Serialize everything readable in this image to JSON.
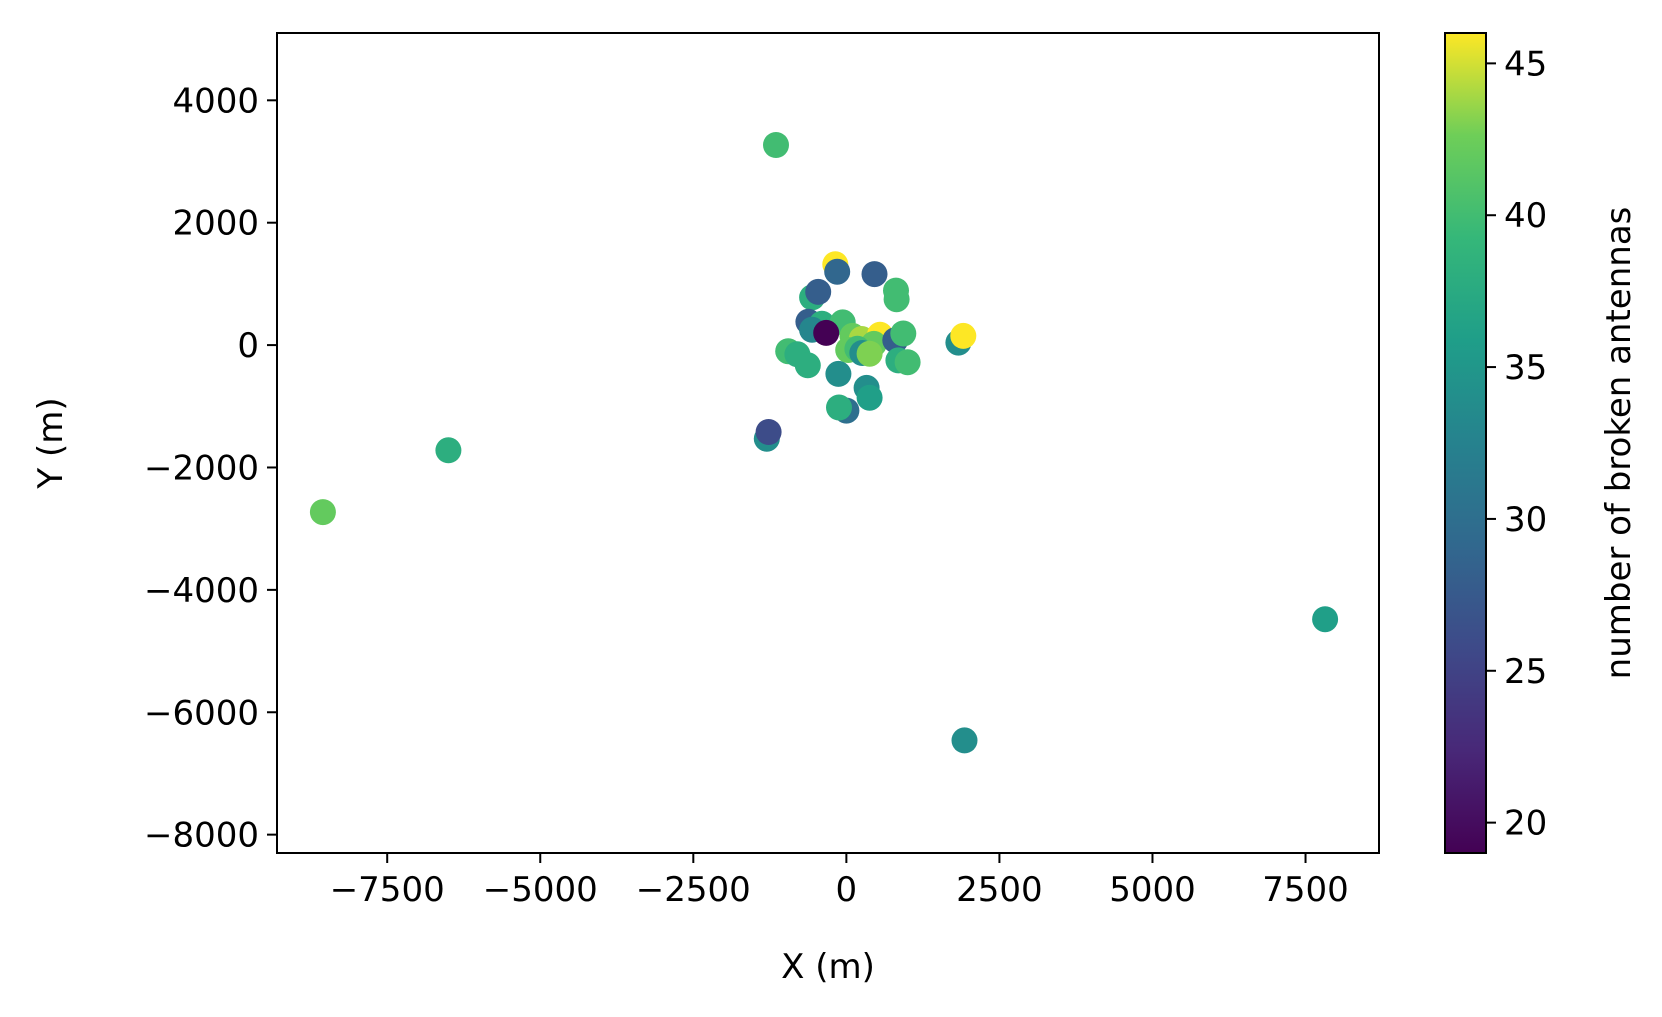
{
  "chart_data": {
    "type": "scatter",
    "xlabel": "X (m)",
    "ylabel": "Y (m)",
    "xlim": [
      -9300,
      8700
    ],
    "ylim": [
      -8300,
      5100
    ],
    "x_ticks": [
      -7500,
      -5000,
      -2500,
      0,
      2500,
      5000,
      7500
    ],
    "x_tick_labels": [
      "−7500",
      "−5000",
      "−2500",
      "0",
      "2500",
      "5000",
      "7500"
    ],
    "y_ticks": [
      -8000,
      -6000,
      -4000,
      -2000,
      0,
      2000,
      4000
    ],
    "y_tick_labels": [
      "−8000",
      "−6000",
      "−4000",
      "−2000",
      "0",
      "2000",
      "4000"
    ],
    "grid": false,
    "colorbar": {
      "label": "number of broken antennas",
      "colormap": "viridis",
      "range": [
        19,
        46
      ],
      "ticks": [
        20,
        25,
        30,
        35,
        40,
        45
      ],
      "tick_labels": [
        "20",
        "25",
        "30",
        "35",
        "40",
        "45"
      ]
    },
    "points": [
      {
        "x": -1150,
        "y": 3270,
        "c": 40
      },
      {
        "x": -6500,
        "y": -1720,
        "c": 38
      },
      {
        "x": -8550,
        "y": -2730,
        "c": 42
      },
      {
        "x": 7820,
        "y": -4480,
        "c": 36
      },
      {
        "x": 1930,
        "y": -6460,
        "c": 34
      },
      {
        "x": -1300,
        "y": -1530,
        "c": 34
      },
      {
        "x": -1270,
        "y": -1420,
        "c": 26
      },
      {
        "x": -180,
        "y": 1320,
        "c": 46
      },
      {
        "x": -150,
        "y": 1200,
        "c": 29
      },
      {
        "x": 460,
        "y": 1160,
        "c": 28
      },
      {
        "x": 810,
        "y": 890,
        "c": 40
      },
      {
        "x": 820,
        "y": 750,
        "c": 40
      },
      {
        "x": -560,
        "y": 780,
        "c": 38
      },
      {
        "x": -460,
        "y": 870,
        "c": 28
      },
      {
        "x": -620,
        "y": 380,
        "c": 28
      },
      {
        "x": -400,
        "y": 350,
        "c": 38
      },
      {
        "x": -560,
        "y": 250,
        "c": 33
      },
      {
        "x": -60,
        "y": 370,
        "c": 40
      },
      {
        "x": -330,
        "y": 200,
        "c": 19
      },
      {
        "x": 100,
        "y": 150,
        "c": 42
      },
      {
        "x": 250,
        "y": 100,
        "c": 44
      },
      {
        "x": 550,
        "y": 170,
        "c": 46
      },
      {
        "x": 450,
        "y": 20,
        "c": 42
      },
      {
        "x": 800,
        "y": 80,
        "c": 28
      },
      {
        "x": 930,
        "y": 190,
        "c": 40
      },
      {
        "x": 1830,
        "y": 40,
        "c": 34
      },
      {
        "x": 1910,
        "y": 150,
        "c": 46
      },
      {
        "x": 30,
        "y": -80,
        "c": 42
      },
      {
        "x": 180,
        "y": -60,
        "c": 40
      },
      {
        "x": 260,
        "y": -130,
        "c": 34
      },
      {
        "x": 380,
        "y": -140,
        "c": 43
      },
      {
        "x": 850,
        "y": -250,
        "c": 38
      },
      {
        "x": 1000,
        "y": -280,
        "c": 40
      },
      {
        "x": -950,
        "y": -100,
        "c": 40
      },
      {
        "x": -800,
        "y": -150,
        "c": 38
      },
      {
        "x": -630,
        "y": -330,
        "c": 38
      },
      {
        "x": -130,
        "y": -470,
        "c": 34
      },
      {
        "x": 330,
        "y": -700,
        "c": 34
      },
      {
        "x": 380,
        "y": -860,
        "c": 36
      },
      {
        "x": 0,
        "y": -1070,
        "c": 30
      },
      {
        "x": -120,
        "y": -1020,
        "c": 38
      }
    ]
  }
}
